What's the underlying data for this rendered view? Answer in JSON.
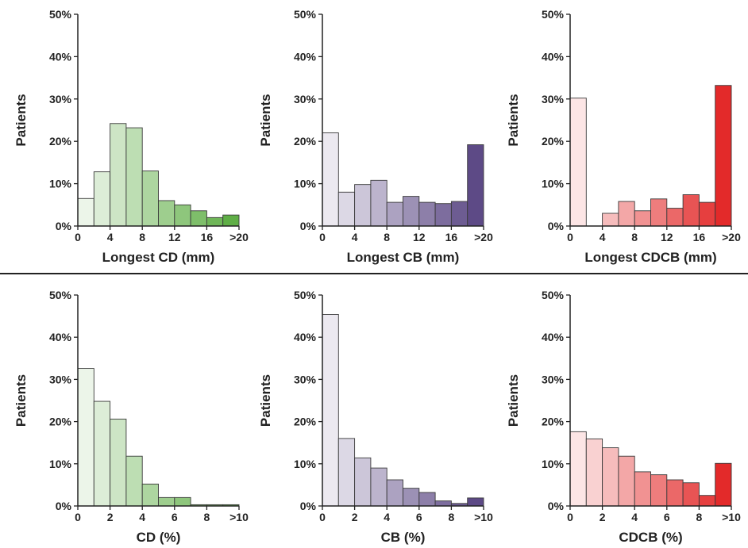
{
  "chart_data": [
    {
      "type": "bar",
      "color": "#5fae46",
      "xlabel": "Longest CD (mm)",
      "ylabel": "Patients",
      "ylim": [
        0,
        50
      ],
      "yticks": [
        "0%",
        "10%",
        "20%",
        "30%",
        "40%",
        "50%"
      ],
      "xticks": [
        "0",
        "4",
        "8",
        "12",
        "16",
        ">20"
      ],
      "bins": [
        "0-2",
        "2-4",
        "4-6",
        "6-8",
        "8-10",
        "10-12",
        "12-14",
        "14-16",
        "16-18",
        ">18"
      ],
      "values": [
        6.5,
        12.8,
        24.2,
        23.2,
        13.0,
        6.0,
        5.0,
        3.6,
        2.0,
        2.6
      ]
    },
    {
      "type": "bar",
      "color": "#5d4a86",
      "xlabel": "Longest CB (mm)",
      "ylabel": "Patients",
      "ylim": [
        0,
        50
      ],
      "yticks": [
        "0%",
        "10%",
        "20%",
        "30%",
        "40%",
        "50%"
      ],
      "xticks": [
        "0",
        "4",
        "8",
        "12",
        "16",
        ">20"
      ],
      "bins": [
        "0-2",
        "2-4",
        "4-6",
        "6-8",
        "8-10",
        "10-12",
        "12-14",
        "14-16",
        "16-18",
        ">18"
      ],
      "values": [
        22.0,
        8.0,
        9.8,
        10.8,
        5.6,
        7.0,
        5.6,
        5.3,
        5.8,
        19.2
      ]
    },
    {
      "type": "bar",
      "color": "#e32a2a",
      "xlabel": "Longest CDCB (mm)",
      "ylabel": "Patients",
      "ylim": [
        0,
        50
      ],
      "yticks": [
        "0%",
        "10%",
        "20%",
        "30%",
        "40%",
        "50%"
      ],
      "xticks": [
        "0",
        "4",
        "8",
        "12",
        "16",
        ">20"
      ],
      "bins": [
        "0-2",
        "2-4",
        "4-6",
        "6-8",
        "8-10",
        "10-12",
        "12-14",
        "14-16",
        "16-18",
        ">18"
      ],
      "values": [
        30.2,
        0,
        3.0,
        5.8,
        3.6,
        6.4,
        4.2,
        7.4,
        5.6,
        33.2
      ]
    },
    {
      "type": "bar",
      "color": "#5fae46",
      "xlabel": "CD (%)",
      "ylabel": "Patients",
      "ylim": [
        0,
        50
      ],
      "yticks": [
        "0%",
        "10%",
        "20%",
        "30%",
        "40%",
        "50%"
      ],
      "xticks": [
        "0",
        "2",
        "4",
        "6",
        "8",
        ">10"
      ],
      "bins": [
        "0-1",
        "1-2",
        "2-3",
        "3-4",
        "4-5",
        "5-6",
        "6-7",
        "7-8",
        "8-9",
        ">9"
      ],
      "values": [
        32.6,
        24.8,
        20.6,
        11.8,
        5.2,
        2.0,
        2.0,
        0.3,
        0.3,
        0.3
      ]
    },
    {
      "type": "bar",
      "color": "#5d4a86",
      "xlabel": "CB (%)",
      "ylabel": "Patients",
      "ylim": [
        0,
        50
      ],
      "yticks": [
        "0%",
        "10%",
        "20%",
        "30%",
        "40%",
        "50%"
      ],
      "xticks": [
        "0",
        "2",
        "4",
        "6",
        "8",
        ">10"
      ],
      "bins": [
        "0-1",
        "1-2",
        "2-3",
        "3-4",
        "4-5",
        "5-6",
        "6-7",
        "7-8",
        "8-9",
        ">9"
      ],
      "values": [
        45.4,
        16.0,
        11.4,
        9.0,
        6.2,
        4.2,
        3.2,
        1.2,
        0.6,
        1.9
      ]
    },
    {
      "type": "bar",
      "color": "#e32a2a",
      "xlabel": "CDCB (%)",
      "ylabel": "Patients",
      "ylim": [
        0,
        50
      ],
      "yticks": [
        "0%",
        "10%",
        "20%",
        "30%",
        "40%",
        "50%"
      ],
      "xticks": [
        "0",
        "2",
        "4",
        "6",
        "8",
        ">10"
      ],
      "bins": [
        "0-1",
        "1-2",
        "2-3",
        "3-4",
        "4-5",
        "5-6",
        "6-7",
        "7-8",
        "8-9",
        ">9"
      ],
      "values": [
        17.6,
        15.9,
        13.8,
        11.8,
        8.1,
        7.4,
        6.2,
        5.5,
        2.5,
        10.1
      ]
    }
  ]
}
